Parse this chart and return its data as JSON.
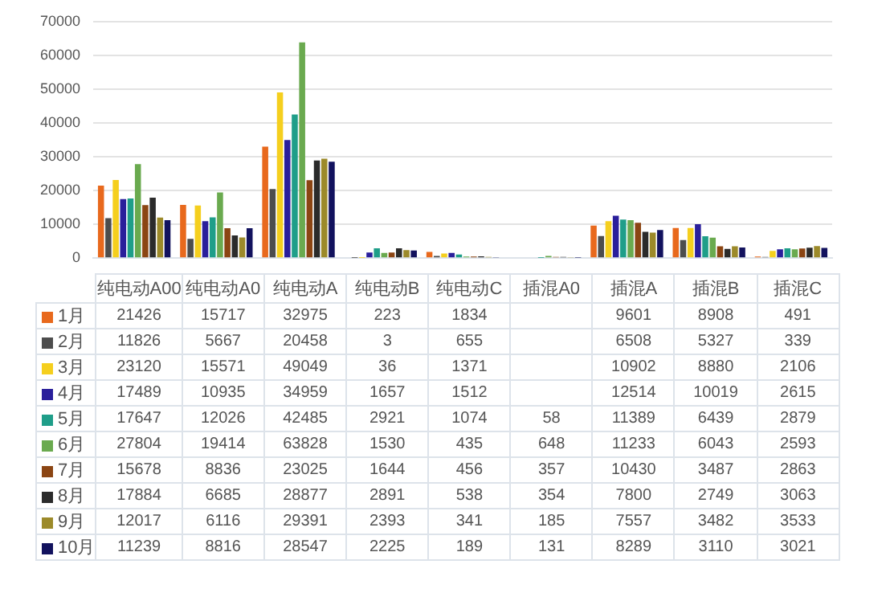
{
  "chart_data": {
    "type": "bar",
    "categories": [
      "纯电动A00",
      "纯电动A0",
      "纯电动A",
      "纯电动B",
      "纯电动C",
      "插混A0",
      "插混A",
      "插混B",
      "插混C"
    ],
    "series": [
      {
        "name": "1月",
        "color": "#e8691d",
        "values": [
          21426,
          15717,
          32975,
          223,
          1834,
          null,
          9601,
          8908,
          491
        ]
      },
      {
        "name": "2月",
        "color": "#4d4d4d",
        "values": [
          11826,
          5667,
          20458,
          3,
          655,
          null,
          6508,
          5327,
          339
        ]
      },
      {
        "name": "3月",
        "color": "#f5cf1e",
        "values": [
          23120,
          15571,
          49049,
          36,
          1371,
          null,
          10902,
          8880,
          2106
        ]
      },
      {
        "name": "4月",
        "color": "#2a1f9b",
        "values": [
          17489,
          10935,
          34959,
          1657,
          1512,
          null,
          12514,
          10019,
          2615
        ]
      },
      {
        "name": "5月",
        "color": "#1f9e89",
        "values": [
          17647,
          12026,
          42485,
          2921,
          1074,
          58,
          11389,
          6439,
          2879
        ]
      },
      {
        "name": "6月",
        "color": "#6aaa4f",
        "values": [
          27804,
          19414,
          63828,
          1530,
          435,
          648,
          11233,
          6043,
          2593
        ]
      },
      {
        "name": "7月",
        "color": "#8b4513",
        "values": [
          15678,
          8836,
          23025,
          1644,
          456,
          357,
          10430,
          3487,
          2863
        ]
      },
      {
        "name": "8月",
        "color": "#2b2b2b",
        "values": [
          17884,
          6685,
          28877,
          2891,
          538,
          354,
          7800,
          2749,
          3063
        ]
      },
      {
        "name": "9月",
        "color": "#9c8a2a",
        "values": [
          12017,
          6116,
          29391,
          2393,
          341,
          185,
          7557,
          3482,
          3533
        ]
      },
      {
        "name": "10月",
        "color": "#12125e",
        "values": [
          11239,
          8816,
          28547,
          2225,
          189,
          131,
          8289,
          3110,
          3021
        ]
      }
    ],
    "ylim": [
      0,
      70000
    ],
    "yticks": [
      0,
      10000,
      20000,
      30000,
      40000,
      50000,
      60000,
      70000
    ],
    "grid": "y",
    "legend": "bottom",
    "data_labels": true
  }
}
